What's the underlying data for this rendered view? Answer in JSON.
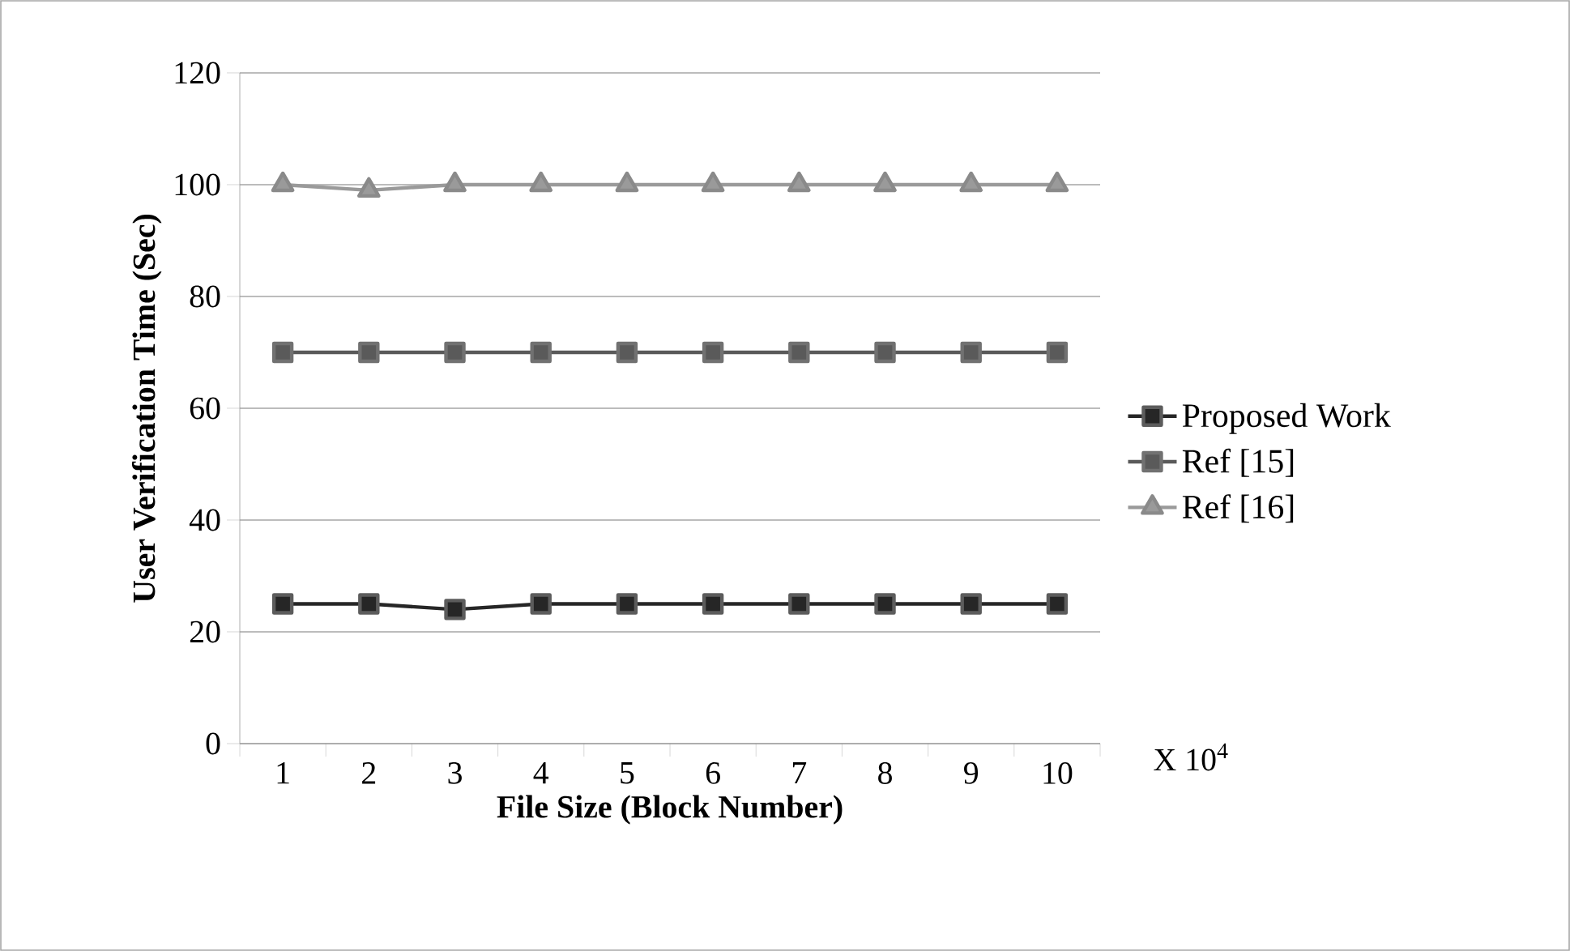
{
  "chart_data": {
    "type": "line",
    "xlabel": "File Size (Block Number)",
    "ylabel": "User Verification  Time (Sec)",
    "categories": [
      "1",
      "2",
      "3",
      "4",
      "5",
      "6",
      "7",
      "8",
      "9",
      "10"
    ],
    "series": [
      {
        "name": "Proposed Work",
        "color": "#262626",
        "marker": "square",
        "values": [
          25,
          25,
          24,
          25,
          25,
          25,
          25,
          25,
          25,
          25
        ]
      },
      {
        "name": "Ref [15]",
        "color": "#5a5a5a",
        "marker": "square",
        "values": [
          70,
          70,
          70,
          70,
          70,
          70,
          70,
          70,
          70,
          70
        ]
      },
      {
        "name": "Ref [16]",
        "color": "#9a9a9a",
        "marker": "triangle",
        "values": [
          100,
          99,
          100,
          100,
          100,
          100,
          100,
          100,
          100,
          100
        ]
      }
    ],
    "ylim": [
      0,
      120
    ],
    "yticks": [
      0,
      20,
      40,
      60,
      80,
      100,
      120
    ],
    "grid": "y",
    "legend": "right",
    "annotations": [
      "X 10$^{4}$"
    ]
  }
}
